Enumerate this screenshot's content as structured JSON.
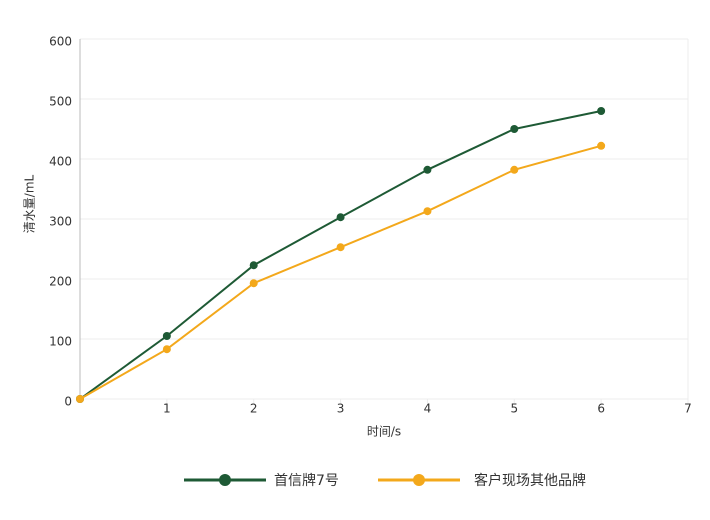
{
  "chart_data": {
    "type": "line",
    "x": [
      0,
      1,
      2,
      3,
      4,
      5,
      6
    ],
    "series": [
      {
        "name": "首信牌7号",
        "color": "#1e5a35",
        "values": [
          0,
          105,
          223,
          303,
          382,
          450,
          480
        ]
      },
      {
        "name": "客户现场其他品牌",
        "color": "#f3a81b",
        "values": [
          0,
          83,
          193,
          253,
          313,
          382,
          422
        ]
      }
    ],
    "xlim": [
      0,
      7
    ],
    "xticks": [
      1,
      2,
      3,
      4,
      5,
      6,
      7
    ],
    "ylim": [
      0,
      600
    ],
    "yticks": [
      0,
      100,
      200,
      300,
      400,
      500,
      600
    ],
    "x_label": "时间/s",
    "y_label": "清水量/mL",
    "grid": true,
    "legend": "bottom"
  }
}
